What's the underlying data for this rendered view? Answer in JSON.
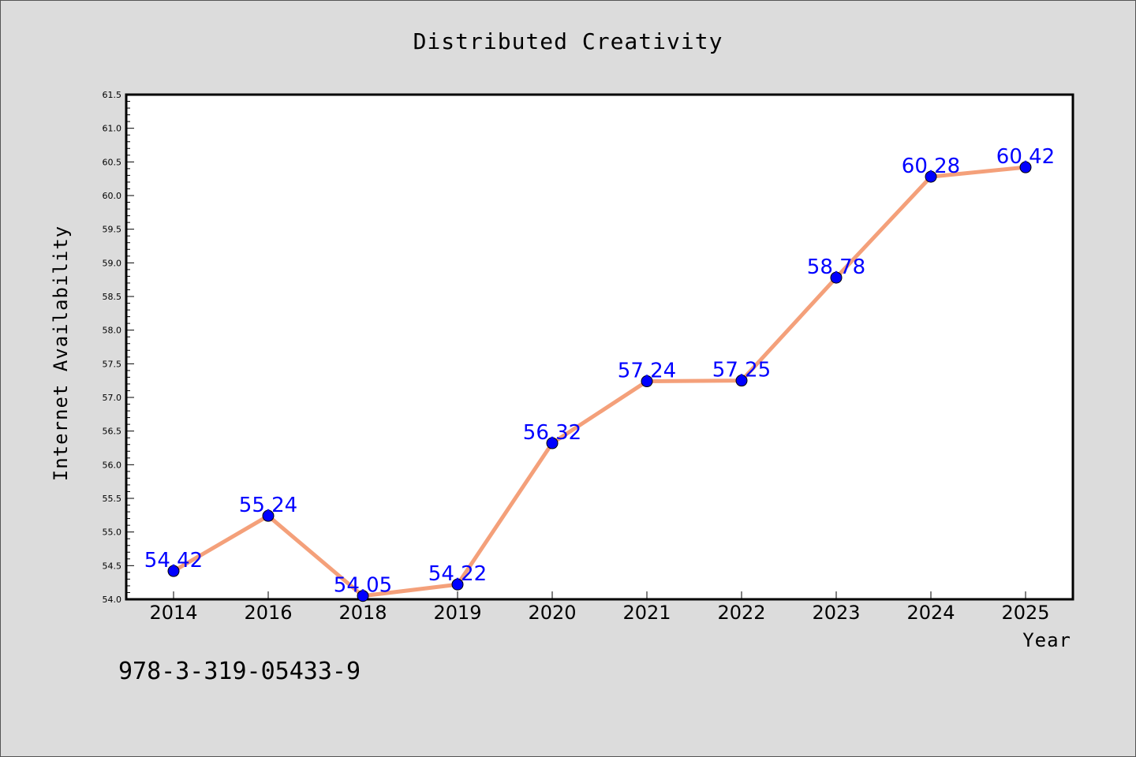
{
  "chart_data": {
    "type": "line",
    "title": "Distributed Creativity",
    "xlabel": "Year",
    "ylabel": "Internet Availability",
    "categories": [
      "2014",
      "2016",
      "2018",
      "2019",
      "2020",
      "2021",
      "2022",
      "2023",
      "2024",
      "2025"
    ],
    "values": [
      54.42,
      55.24,
      54.05,
      54.22,
      56.32,
      57.24,
      57.25,
      58.78,
      60.28,
      60.42
    ],
    "data_labels": [
      "54.42",
      "55.24",
      "54.05",
      "54.22",
      "56.32",
      "57.24",
      "57.25",
      "58.78",
      "60.28",
      "60.42"
    ],
    "ylim": [
      54.0,
      61.5
    ],
    "yticks": [
      "54.0",
      "54.5",
      "55.0",
      "55.5",
      "56.0",
      "56.5",
      "57.0",
      "57.5",
      "58.0",
      "58.5",
      "59.0",
      "59.5",
      "60.0",
      "60.5",
      "61.0",
      "61.5"
    ],
    "grid": false,
    "line_color": "#f4a07a",
    "marker_color": "#0000ff",
    "label_color": "#0000ff",
    "background_color": "#dcdcdc",
    "plot_background": "#ffffff"
  },
  "footer": {
    "isbn": "978-3-319-05433-9"
  }
}
